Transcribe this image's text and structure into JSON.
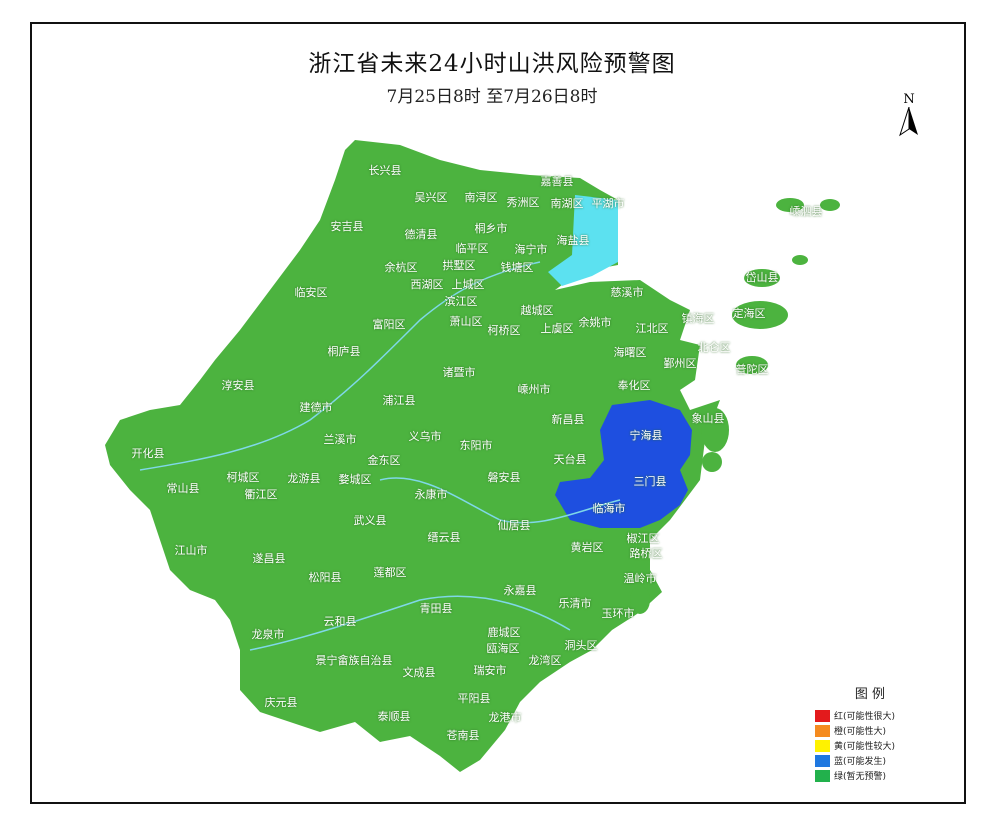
{
  "title": "浙江省未来24小时山洪风险预警图",
  "subtitle": "7月25日8时 至7月26日8时",
  "north_label": "N",
  "legend": {
    "title": "图 例",
    "items": [
      {
        "label": "红(可能性很大)",
        "color": "#e31a1c"
      },
      {
        "label": "橙(可能性大)",
        "color": "#f58b1f"
      },
      {
        "label": "黄(可能性较大)",
        "color": "#fff200"
      },
      {
        "label": "蓝(可能发生)",
        "color": "#1f78e0"
      },
      {
        "label": "绿(暂无预警)",
        "color": "#22b14c"
      }
    ]
  },
  "colors": {
    "land": "#4cb33f",
    "blue_warning": "#1e4fe0",
    "cyan_area": "#5ce1f0",
    "river": "#7fd8e8"
  },
  "regions": [
    "长兴县",
    "嘉善县",
    "吴兴区",
    "南浔区",
    "秀洲区",
    "南湖区",
    "平湖市",
    "嵊泗县",
    "安吉县",
    "德清县",
    "桐乡市",
    "临平区",
    "海宁市",
    "海盐县",
    "余杭区",
    "拱墅区",
    "钱塘区",
    "岱山县",
    "西湖区",
    "上城区",
    "临安区",
    "滨江区",
    "慈溪市",
    "越城区",
    "定海区",
    "镇海区",
    "富阳区",
    "萧山区",
    "柯桥区",
    "上虞区",
    "余姚市",
    "江北区",
    "北仑区",
    "桐庐县",
    "海曙区",
    "鄞州区",
    "普陀区",
    "诸暨市",
    "淳安县",
    "嵊州市",
    "奉化区",
    "建德市",
    "浦江县",
    "新昌县",
    "象山县",
    "兰溪市",
    "义乌市",
    "东阳市",
    "宁海县",
    "开化县",
    "金东区",
    "天台县",
    "柯城区",
    "龙游县",
    "婺城区",
    "磐安县",
    "三门县",
    "常山县",
    "衢江区",
    "永康市",
    "临海市",
    "武义县",
    "仙居县",
    "缙云县",
    "椒江区",
    "黄岩区",
    "江山市",
    "路桥区",
    "遂昌县",
    "松阳县",
    "莲都区",
    "温岭市",
    "永嘉县",
    "乐清市",
    "青田县",
    "玉环市",
    "云和县",
    "龙泉市",
    "鹿城区",
    "洞头区",
    "瓯海区",
    "龙湾区",
    "景宁畲族自治县",
    "文成县",
    "瑞安市",
    "庆元县",
    "平阳县",
    "泰顺县",
    "龙港市",
    "苍南县"
  ],
  "blue_warning_regions": [
    "宁海县",
    "三门县",
    "临海市"
  ]
}
